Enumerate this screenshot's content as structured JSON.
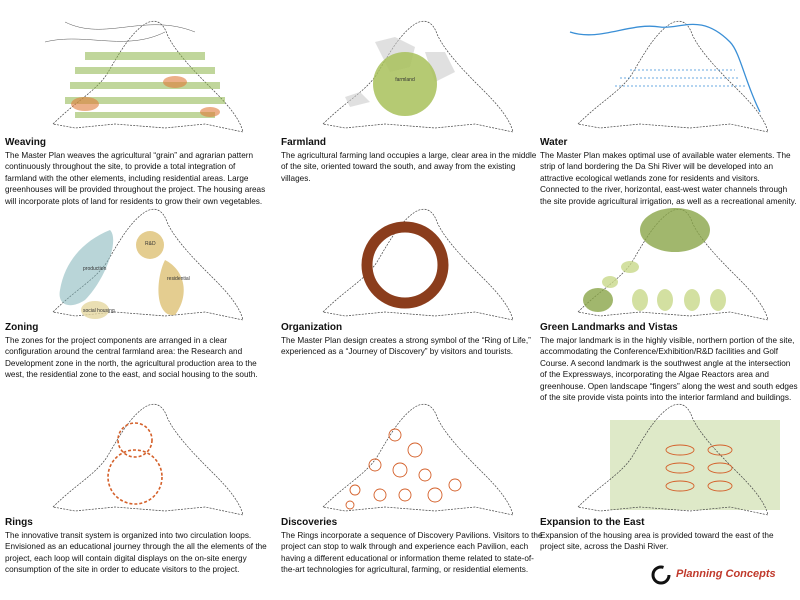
{
  "panels": [
    {
      "title": "Weaving",
      "body": "The Master Plan weaves the agricultural “grain” and agrarian pattern continuously throughout the site, to provide a total integration of farmland with the other elements, including residential areas.  Large greenhouses will be provided throughout the project.  The housing areas will incorporate plots of land for residents to grow their own vegetables."
    },
    {
      "title": "Farmland",
      "body": "The agricultural farming land occupies a large, clear area in the middle of the site, oriented toward the south, and away from the existing villages.",
      "labels": [
        "farmland"
      ]
    },
    {
      "title": "Water",
      "body": "The Master Plan makes optimal use of available water elements. The strip of land bordering the Da Shi River will be developed into an attractive ecological wetlands zone for residents and visitors. Connected to the river, horizontal, east-west water channels through the site  provide agricultural irrigation, as well as a recreational amenity."
    },
    {
      "title": "Zoning",
      "body": "The zones for the project components are arranged in a clear configuration around the central farmland area: the Research and Development zone in the north, the agricultural production area to the west, the residential zone to the east, and social housing to the south.",
      "labels": [
        "R&D",
        "production",
        "residential",
        "social housing"
      ]
    },
    {
      "title": "Organization",
      "body": "The Master Plan design creates a strong symbol of the “Ring of Life,” experienced as a “Journey of Discovery” by visitors and tourists."
    },
    {
      "title": "Green Landmarks and Vistas",
      "body": "The major landmark is in the highly visible, northern portion of the site, accommodating the Conference/Exhibition/R&D facilities and Golf Course.  A second landmark is the southwest angle at the intersection of the Expressways, incorporating the Algae Reactors area and greenhouse.  Open landscape “fingers” along the west and south edges of the site provide vista points into the interior farmland and buildings."
    },
    {
      "title": "Rings",
      "body": "The innovative transit system is organized into two circulation loops.  Envisioned as an educational journey through the all the elements of the project, each loop will contain digital displays on the on-site energy consumption of the site in order to educate visitors to the project."
    },
    {
      "title": "Discoveries",
      "body": "The Rings incorporate a sequence of Discovery Pavilions.  Visitors to the project can stop to walk through and experience each Pavilion, each having a different educational or information theme related to state-of-the-art technologies for agricultural, farming, or residential elements."
    },
    {
      "title": "Expansion to the East",
      "body": "Expansion of the housing area is provided toward the east of the project site, across the Dashi River."
    }
  ],
  "footer": {
    "title": "Planning Concepts"
  }
}
